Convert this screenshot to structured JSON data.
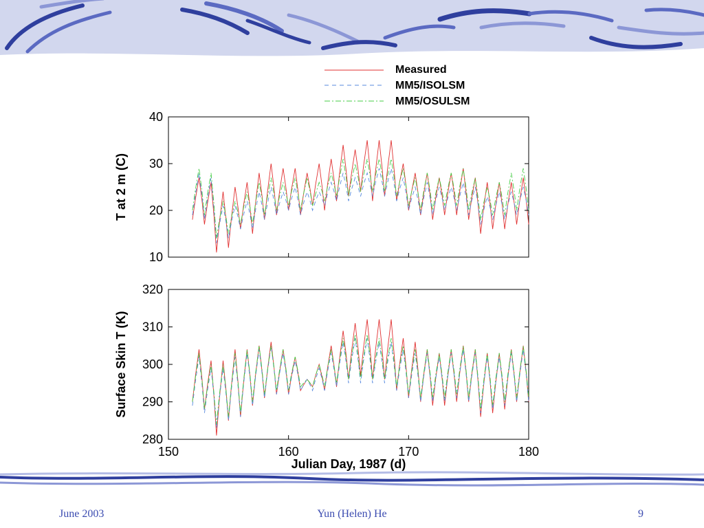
{
  "colors": {
    "header_band": "#d2d7ee",
    "stroke_dark": "#2f3f9e",
    "stroke_mid": "#5b6ac2",
    "stroke_light": "#8c97d6",
    "footer_text": "#3b4bb0"
  },
  "footer": {
    "date": "June 2003",
    "author": "Yun (Helen) He",
    "page": "9"
  },
  "chart_data": [
    {
      "type": "line",
      "title": "",
      "xlabel": "",
      "ylabel": "T at 2 m (C)",
      "xlim": [
        150,
        180
      ],
      "ylim": [
        10,
        40
      ],
      "xticks": [
        "150",
        "160",
        "170",
        "180"
      ],
      "show_xtick_labels": false,
      "yticks": [
        "10",
        "20",
        "30",
        "40"
      ],
      "x_start": 152,
      "x_end": 180,
      "samples_per_day": 4,
      "legend_placement": "top-right",
      "series": [
        {
          "name": "Measured",
          "color": "#e03030",
          "dash": "solid",
          "daily_max": [
            27,
            26,
            24,
            25,
            26,
            28,
            30,
            29,
            29,
            28,
            30,
            31,
            34,
            33,
            35,
            35,
            35,
            30,
            28,
            28,
            27,
            28,
            29,
            27,
            26,
            26,
            26,
            27
          ],
          "daily_min": [
            18,
            17,
            11,
            12,
            16,
            15,
            18,
            19,
            20,
            19,
            21,
            20,
            22,
            23,
            24,
            22,
            23,
            22,
            20,
            19,
            18,
            19,
            19,
            18,
            15,
            16,
            16,
            17
          ]
        },
        {
          "name": "MM5/ISOLSM",
          "color": "#5588dd",
          "dash": "6,5",
          "daily_max": [
            28,
            27,
            21,
            21,
            22,
            24,
            25,
            24,
            25,
            24,
            24,
            26,
            28,
            27,
            28,
            29,
            29,
            27,
            25,
            26,
            25,
            25,
            26,
            25,
            23,
            24,
            24,
            25
          ],
          "daily_min": [
            19,
            18,
            13,
            14,
            16,
            16,
            18,
            19,
            20,
            19,
            20,
            21,
            22,
            22,
            23,
            23,
            23,
            22,
            20,
            19,
            19,
            20,
            20,
            19,
            17,
            18,
            18,
            19
          ]
        },
        {
          "name": "MM5/OSULSM",
          "color": "#44cc44",
          "dash": "8,3,2,3",
          "daily_max": [
            29,
            28,
            22,
            22,
            24,
            26,
            27,
            26,
            27,
            27,
            26,
            28,
            31,
            30,
            31,
            31,
            31,
            29,
            27,
            28,
            27,
            28,
            29,
            27,
            25,
            26,
            28,
            29
          ],
          "daily_min": [
            20,
            19,
            14,
            15,
            17,
            17,
            19,
            20,
            21,
            20,
            21,
            22,
            23,
            23,
            24,
            24,
            24,
            23,
            21,
            20,
            20,
            21,
            21,
            20,
            18,
            19,
            19,
            20
          ]
        }
      ]
    },
    {
      "type": "line",
      "title": "",
      "xlabel": "Julian Day, 1987 (d)",
      "ylabel": "Surface Skin T (K)",
      "xlim": [
        150,
        180
      ],
      "ylim": [
        280,
        320
      ],
      "xticks": [
        "150",
        "160",
        "170",
        "180"
      ],
      "show_xtick_labels": true,
      "yticks": [
        "280",
        "290",
        "300",
        "310",
        "320"
      ],
      "x_start": 152,
      "x_end": 180,
      "samples_per_day": 4,
      "series": [
        {
          "name": "Measured",
          "color": "#e03030",
          "dash": "solid",
          "daily_max": [
            304,
            301,
            301,
            304,
            304,
            305,
            306,
            304,
            302,
            296,
            300,
            305,
            309,
            311,
            312,
            312,
            312,
            307,
            306,
            304,
            303,
            304,
            305,
            304,
            303,
            303,
            304,
            305
          ],
          "daily_min": [
            290,
            288,
            281,
            285,
            286,
            289,
            291,
            292,
            292,
            293,
            294,
            293,
            294,
            296,
            297,
            296,
            296,
            293,
            291,
            290,
            289,
            289,
            290,
            290,
            286,
            287,
            288,
            290
          ]
        },
        {
          "name": "MM5/ISOLSM",
          "color": "#5588dd",
          "dash": "6,5",
          "daily_max": [
            302,
            299,
            299,
            302,
            303,
            304,
            305,
            303,
            301,
            296,
            299,
            303,
            306,
            307,
            307,
            306,
            306,
            304,
            303,
            303,
            302,
            303,
            304,
            303,
            302,
            302,
            303,
            304
          ],
          "daily_min": [
            289,
            287,
            283,
            285,
            286,
            289,
            291,
            292,
            292,
            293,
            293,
            293,
            294,
            295,
            295,
            295,
            295,
            293,
            291,
            290,
            290,
            290,
            291,
            290,
            287,
            288,
            289,
            290
          ]
        },
        {
          "name": "MM5/OSULSM",
          "color": "#44cc44",
          "dash": "8,3,2,3",
          "daily_max": [
            303,
            300,
            300,
            303,
            304,
            305,
            305,
            304,
            302,
            296,
            300,
            304,
            307,
            308,
            308,
            307,
            307,
            305,
            304,
            304,
            303,
            304,
            305,
            304,
            303,
            303,
            304,
            305
          ],
          "daily_min": [
            290,
            288,
            284,
            286,
            287,
            290,
            292,
            293,
            293,
            294,
            294,
            294,
            295,
            296,
            296,
            296,
            296,
            294,
            292,
            291,
            291,
            291,
            292,
            291,
            288,
            289,
            290,
            291
          ]
        }
      ]
    }
  ]
}
